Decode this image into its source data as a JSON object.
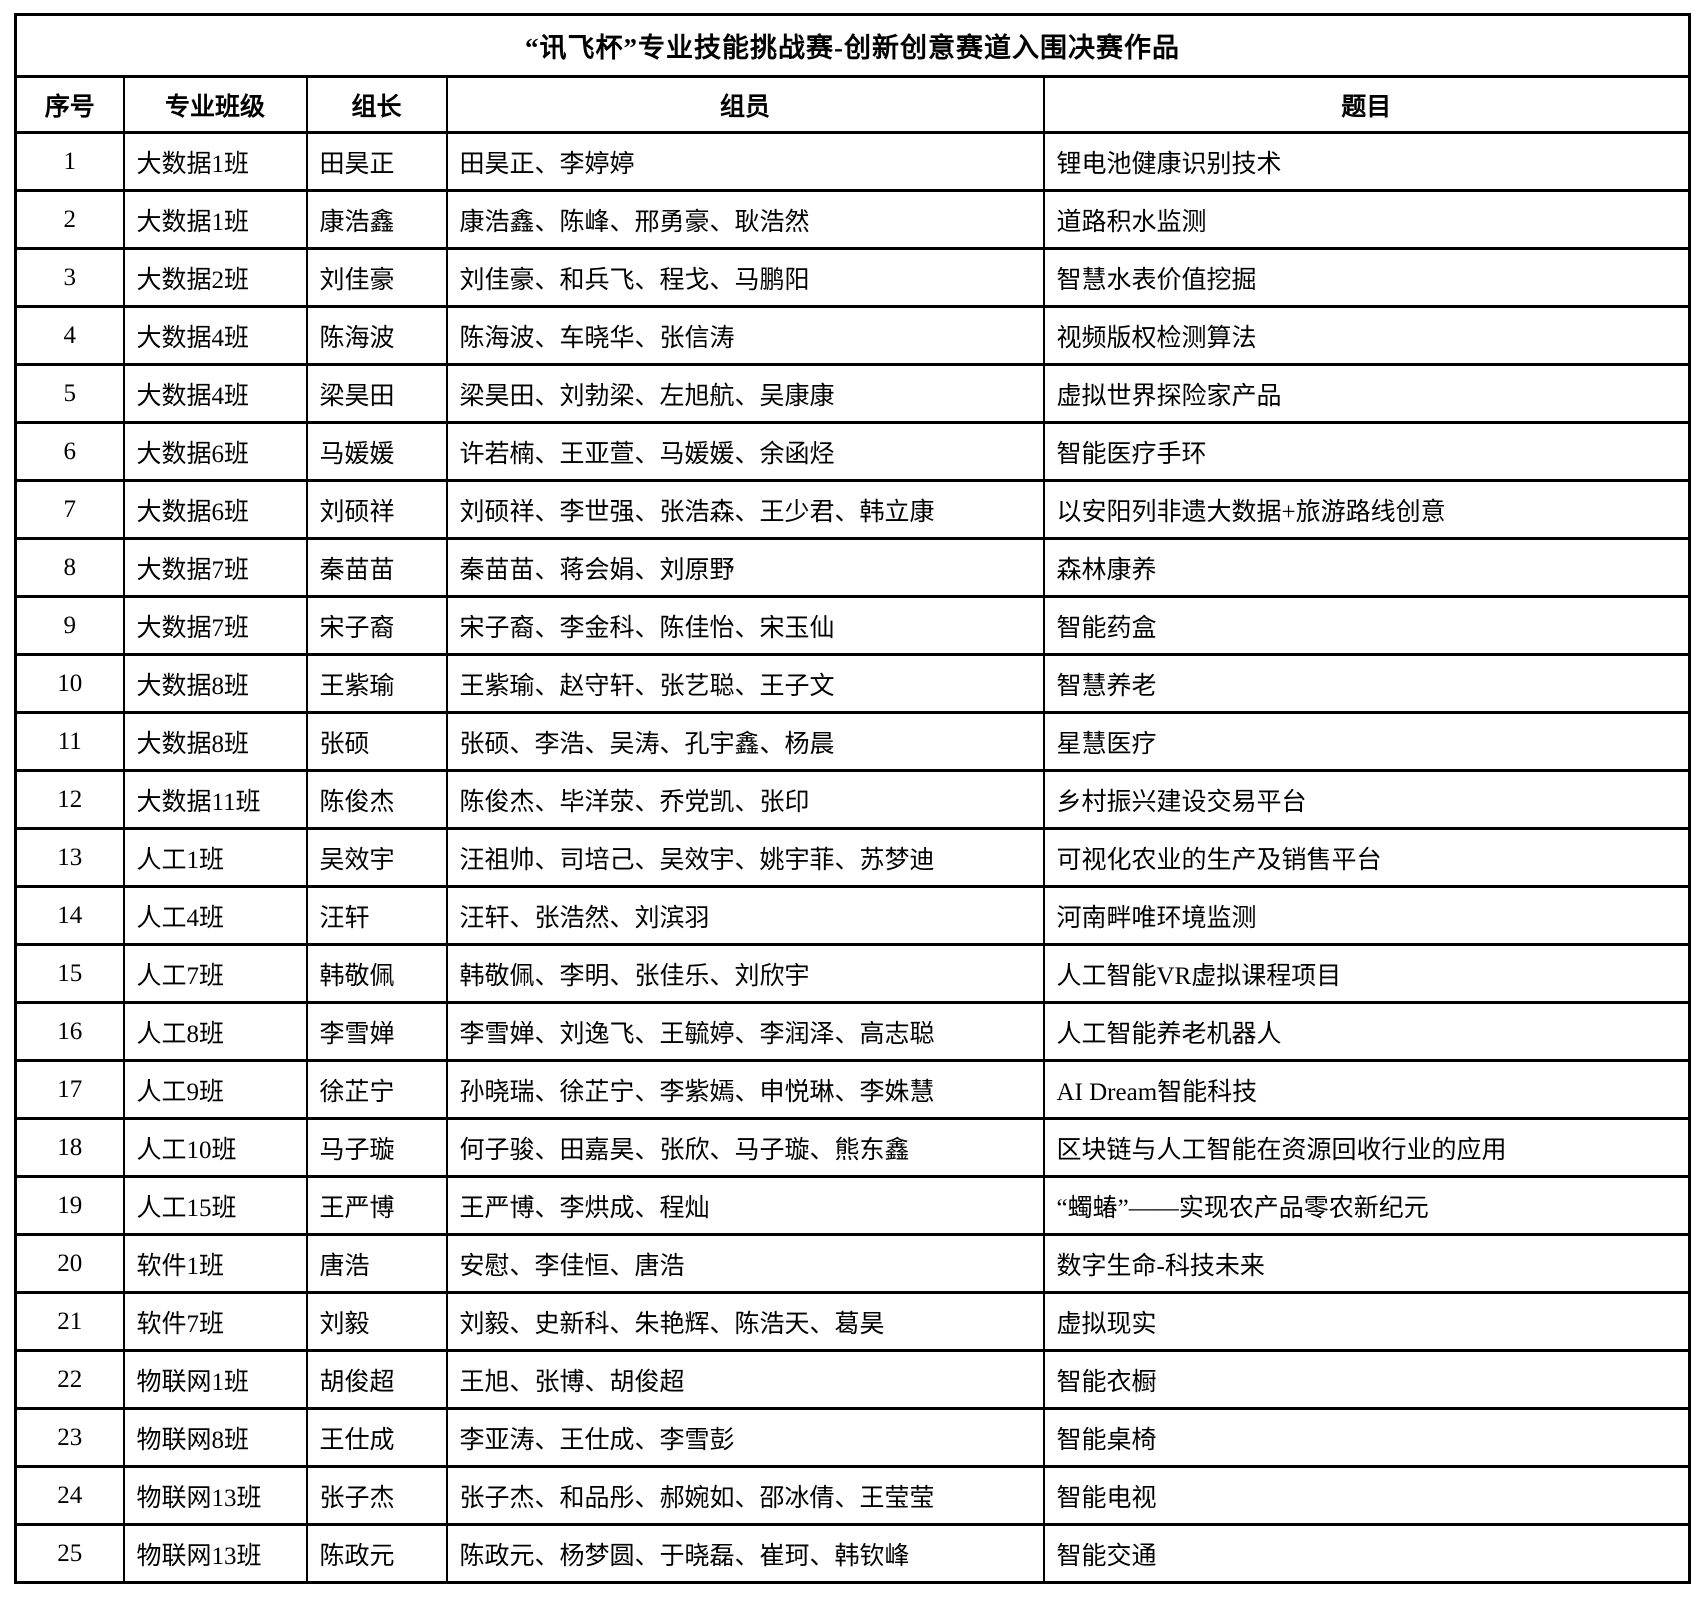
{
  "page": {
    "background_color": "#ffffff",
    "text_color": "#000000",
    "border_color": "#000000"
  },
  "table": {
    "title": "“讯飞杯”专业技能挑战赛-创新创意赛道入围决赛作品",
    "headers": [
      "序号",
      "专业班级",
      "组长",
      "组员",
      "题目"
    ],
    "rows": [
      {
        "no": "1",
        "class": "大数据1班",
        "leader": "田昊正",
        "members": "田昊正、李婷婷",
        "topic": "锂电池健康识别技术"
      },
      {
        "no": "2",
        "class": "大数据1班",
        "leader": "康浩鑫",
        "members": "康浩鑫、陈峰、邢勇豪、耿浩然",
        "topic": "道路积水监测"
      },
      {
        "no": "3",
        "class": "大数据2班",
        "leader": "刘佳豪",
        "members": "刘佳豪、和兵飞、程戈、马鹏阳",
        "topic": "智慧水表价值挖掘"
      },
      {
        "no": "4",
        "class": "大数据4班",
        "leader": "陈海波",
        "members": "陈海波、车晓华、张信涛",
        "topic": "视频版权检测算法"
      },
      {
        "no": "5",
        "class": "大数据4班",
        "leader": "梁昊田",
        "members": "梁昊田、刘勃梁、左旭航、吴康康",
        "topic": "虚拟世界探险家产品"
      },
      {
        "no": "6",
        "class": "大数据6班",
        "leader": "马媛媛",
        "members": "许若楠、王亚萱、马媛媛、余函烃",
        "topic": "智能医疗手环"
      },
      {
        "no": "7",
        "class": "大数据6班",
        "leader": "刘硕祥",
        "members": "刘硕祥、李世强、张浩森、王少君、韩立康",
        "topic": "以安阳列非遗大数据+旅游路线创意"
      },
      {
        "no": "8",
        "class": "大数据7班",
        "leader": "秦苗苗",
        "members": "秦苗苗、蒋会娟、刘原野",
        "topic": "森林康养"
      },
      {
        "no": "9",
        "class": "大数据7班",
        "leader": "宋子裔",
        "members": "宋子裔、李金科、陈佳怡、宋玉仙",
        "topic": "智能药盒"
      },
      {
        "no": "10",
        "class": "大数据8班",
        "leader": "王紫瑜",
        "members": "王紫瑜、赵守轩、张艺聪、王子文",
        "topic": "智慧养老"
      },
      {
        "no": "11",
        "class": "大数据8班",
        "leader": "张硕",
        "members": "张硕、李浩、吴涛、孔宇鑫、杨晨",
        "topic": "星慧医疗"
      },
      {
        "no": "12",
        "class": "大数据11班",
        "leader": "陈俊杰",
        "members": "陈俊杰、毕洋荥、乔党凯、张印",
        "topic": "乡村振兴建设交易平台"
      },
      {
        "no": "13",
        "class": "人工1班",
        "leader": "吴效宇",
        "members": "汪祖帅、司培己、吴效宇、姚宇菲、苏梦迪",
        "topic": "可视化农业的生产及销售平台"
      },
      {
        "no": "14",
        "class": "人工4班",
        "leader": "汪轩",
        "members": "汪轩、张浩然、刘滨羽",
        "topic": "河南畔唯环境监测"
      },
      {
        "no": "15",
        "class": "人工7班",
        "leader": "韩敬佩",
        "members": "韩敬佩、李明、张佳乐、刘欣宇",
        "topic": "人工智能VR虚拟课程项目"
      },
      {
        "no": "16",
        "class": "人工8班",
        "leader": "李雪婵",
        "members": "李雪婵、刘逸飞、王毓婷、李润泽、高志聪",
        "topic": "人工智能养老机器人"
      },
      {
        "no": "17",
        "class": "人工9班",
        "leader": "徐芷宁",
        "members": "孙晓瑞、徐芷宁、李紫嫣、申悦琳、李姝慧",
        "topic": "AI Dream智能科技"
      },
      {
        "no": "18",
        "class": "人工10班",
        "leader": "马子璇",
        "members": "何子骏、田嘉昊、张欣、马子璇、熊东鑫",
        "topic": "区块链与人工智能在资源回收行业的应用"
      },
      {
        "no": "19",
        "class": "人工15班",
        "leader": "王严博",
        "members": "王严博、李烘成、程灿",
        "topic": "“蠋蝽”——实现农产品零农新纪元"
      },
      {
        "no": "20",
        "class": "软件1班",
        "leader": "唐浩",
        "members": "安慰、李佳恒、唐浩",
        "topic": "数字生命-科技未来"
      },
      {
        "no": "21",
        "class": "软件7班",
        "leader": "刘毅",
        "members": "刘毅、史新科、朱艳辉、陈浩天、葛昊",
        "topic": "虚拟现实"
      },
      {
        "no": "22",
        "class": "物联网1班",
        "leader": "胡俊超",
        "members": "王旭、张博、胡俊超",
        "topic": "智能衣橱"
      },
      {
        "no": "23",
        "class": "物联网8班",
        "leader": "王仕成",
        "members": "李亚涛、王仕成、李雪彭",
        "topic": "智能桌椅"
      },
      {
        "no": "24",
        "class": "物联网13班",
        "leader": "张子杰",
        "members": "张子杰、和品彤、郝婉如、邵冰倩、王莹莹",
        "topic": "智能电视"
      },
      {
        "no": "25",
        "class": "物联网13班",
        "leader": "陈政元",
        "members": "陈政元、杨梦圆、于晓磊、崔珂、韩钦峰",
        "topic": "智能交通"
      }
    ]
  }
}
